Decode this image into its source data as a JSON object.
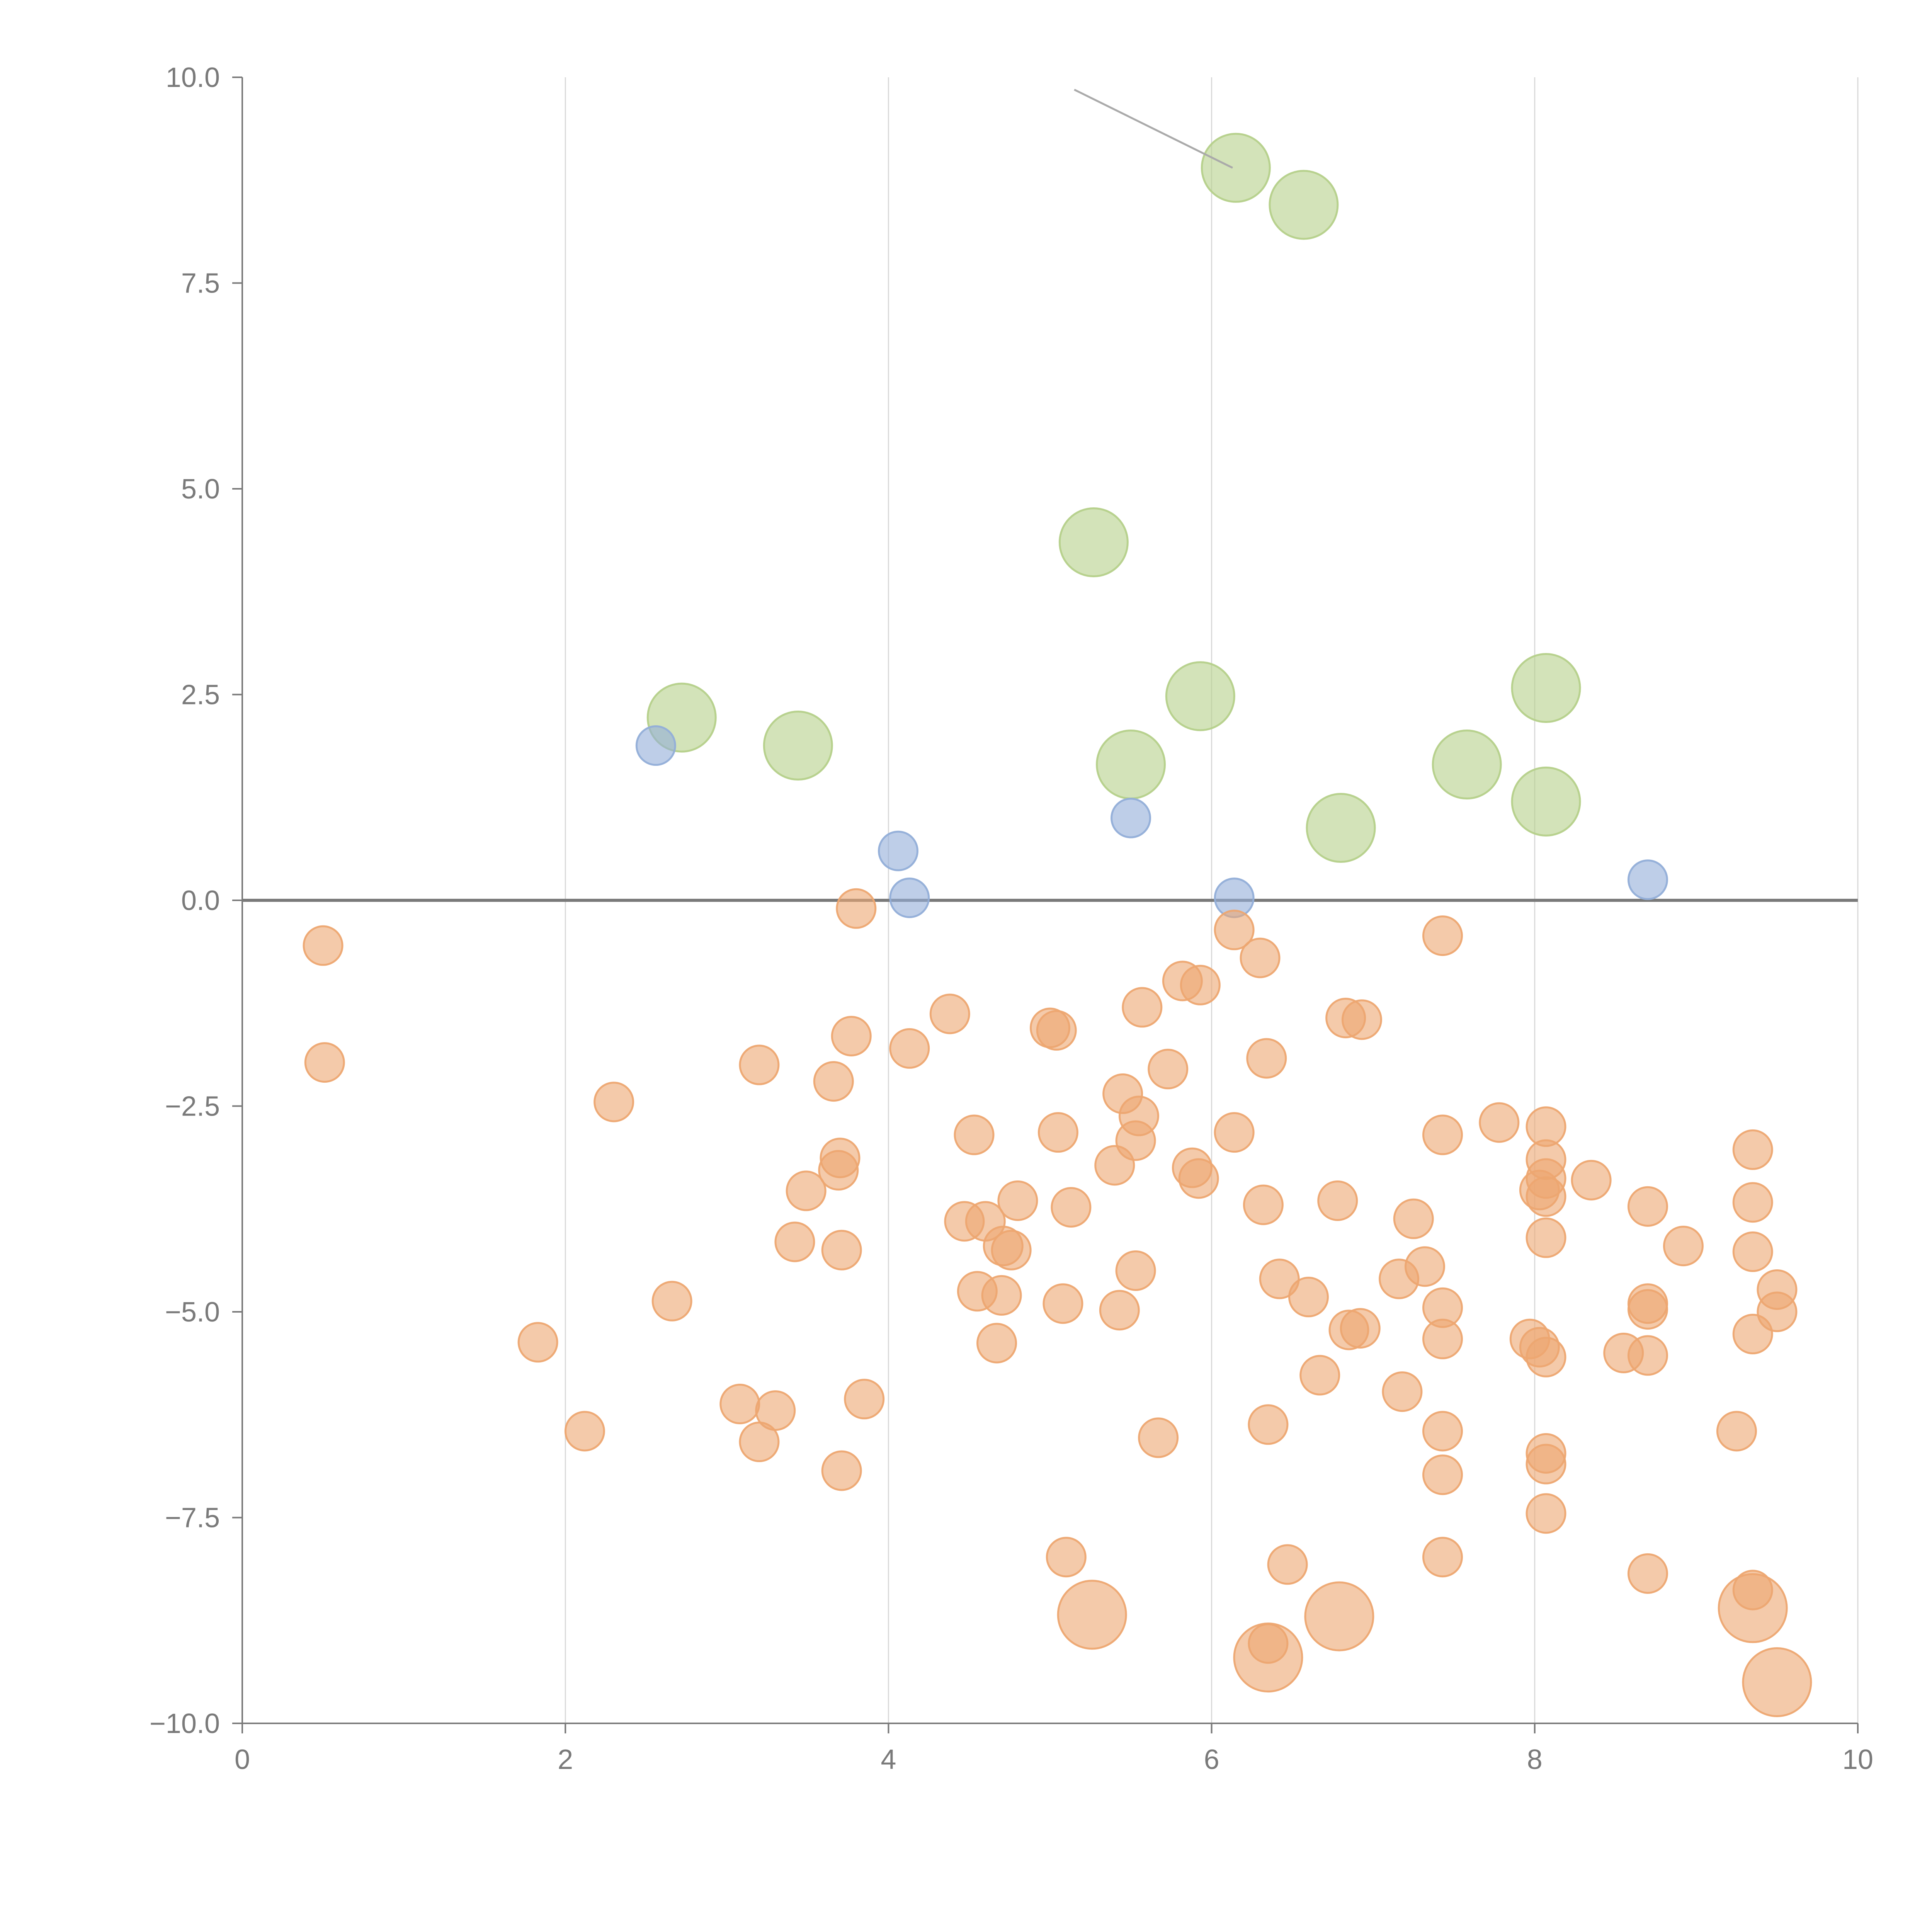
{
  "chart_data": {
    "type": "scatter",
    "title": "",
    "xlabel": "",
    "ylabel": "",
    "xlim": [
      0,
      10
    ],
    "ylim": [
      -10,
      10
    ],
    "grid": "vertical",
    "zero_line": true,
    "x_ticks": [
      0,
      2,
      4,
      6,
      8,
      10
    ],
    "x_tick_labels": [
      "0",
      "2",
      "4",
      "6",
      "8",
      "10"
    ],
    "y_ticks": [
      10,
      7.5,
      5,
      2.5,
      0,
      -2.5,
      -5,
      -7.5,
      -10
    ],
    "y_tick_labels": [
      "10.0",
      "7.5",
      "5.0",
      "2.5",
      "0.0",
      "−2.5",
      "−5.0",
      "−7.5",
      "−10.0"
    ],
    "colors": {
      "green": "#b5d08a",
      "blue": "#92aed8",
      "orange": "#eda771",
      "axis": "#7a7a7a",
      "grid": "#d9d9d9",
      "annotation_line": "#aaaaaa"
    },
    "series": [
      {
        "name": "green",
        "color": "#b5d08a",
        "size": 3,
        "points": [
          [
            6.15,
            8.9
          ],
          [
            6.57,
            8.45
          ],
          [
            5.27,
            4.35
          ],
          [
            2.72,
            2.22
          ],
          [
            3.44,
            1.88
          ],
          [
            5.93,
            2.48
          ],
          [
            8.07,
            2.58
          ],
          [
            5.5,
            1.65
          ],
          [
            7.58,
            1.65
          ],
          [
            8.07,
            1.2
          ],
          [
            6.8,
            0.88
          ]
        ]
      },
      {
        "name": "blue",
        "color": "#92aed8",
        "size": 1,
        "points": [
          [
            2.56,
            1.88
          ],
          [
            4.06,
            0.6
          ],
          [
            4.13,
            0.03
          ],
          [
            5.5,
            1.0
          ],
          [
            6.14,
            0.03
          ],
          [
            8.7,
            0.25
          ]
        ]
      },
      {
        "name": "orange",
        "color": "#eda771",
        "size": 1,
        "points": [
          [
            0.5,
            -0.55
          ],
          [
            0.51,
            -1.97
          ],
          [
            2.3,
            -2.45
          ],
          [
            3.8,
            -0.1
          ],
          [
            3.77,
            -1.65
          ],
          [
            4.13,
            -1.8
          ],
          [
            3.2,
            -2.0
          ],
          [
            3.66,
            -2.2
          ],
          [
            4.38,
            -1.38
          ],
          [
            5.0,
            -1.55
          ],
          [
            5.04,
            -1.58
          ],
          [
            5.57,
            -1.3
          ],
          [
            5.82,
            -0.98
          ],
          [
            5.93,
            -1.03
          ],
          [
            6.14,
            -0.36
          ],
          [
            6.3,
            -0.7
          ],
          [
            6.34,
            -1.92
          ],
          [
            5.73,
            -2.05
          ],
          [
            5.45,
            -2.35
          ],
          [
            5.55,
            -2.62
          ],
          [
            5.53,
            -2.92
          ],
          [
            5.4,
            -3.22
          ],
          [
            5.88,
            -3.25
          ],
          [
            5.92,
            -3.38
          ],
          [
            6.14,
            -2.82
          ],
          [
            5.05,
            -2.82
          ],
          [
            4.53,
            -2.85
          ],
          [
            3.7,
            -3.13
          ],
          [
            3.69,
            -3.28
          ],
          [
            3.49,
            -3.53
          ],
          [
            3.42,
            -4.15
          ],
          [
            3.71,
            -4.25
          ],
          [
            4.47,
            -3.9
          ],
          [
            4.6,
            -3.9
          ],
          [
            4.8,
            -3.65
          ],
          [
            5.13,
            -3.73
          ],
          [
            4.71,
            -4.2
          ],
          [
            4.76,
            -4.25
          ],
          [
            6.32,
            -3.7
          ],
          [
            6.78,
            -3.65
          ],
          [
            6.83,
            -1.43
          ],
          [
            6.93,
            -1.45
          ],
          [
            7.43,
            -0.43
          ],
          [
            7.43,
            -2.85
          ],
          [
            7.25,
            -3.87
          ],
          [
            7.78,
            -2.7
          ],
          [
            8.07,
            -2.75
          ],
          [
            8.07,
            -3.15
          ],
          [
            8.07,
            -3.38
          ],
          [
            8.03,
            -3.52
          ],
          [
            8.07,
            -3.6
          ],
          [
            8.35,
            -3.4
          ],
          [
            8.07,
            -4.1
          ],
          [
            8.7,
            -3.72
          ],
          [
            8.92,
            -4.2
          ],
          [
            9.35,
            -3.03
          ],
          [
            9.35,
            -3.67
          ],
          [
            9.35,
            -4.27
          ],
          [
            9.5,
            -4.73
          ],
          [
            9.5,
            -5.0
          ],
          [
            9.35,
            -5.27
          ],
          [
            9.25,
            -6.45
          ],
          [
            8.55,
            -5.5
          ],
          [
            8.7,
            -5.53
          ],
          [
            8.7,
            -4.9
          ],
          [
            8.7,
            -4.97
          ],
          [
            8.07,
            -5.55
          ],
          [
            8.03,
            -5.43
          ],
          [
            7.97,
            -5.33
          ],
          [
            7.43,
            -5.33
          ],
          [
            7.43,
            -4.95
          ],
          [
            7.32,
            -4.45
          ],
          [
            7.16,
            -4.6
          ],
          [
            6.92,
            -5.2
          ],
          [
            6.85,
            -5.22
          ],
          [
            6.6,
            -4.82
          ],
          [
            6.42,
            -4.6
          ],
          [
            6.67,
            -5.77
          ],
          [
            7.18,
            -5.97
          ],
          [
            7.43,
            -6.45
          ],
          [
            7.43,
            -6.98
          ],
          [
            6.35,
            -6.37
          ],
          [
            5.67,
            -6.53
          ],
          [
            5.08,
            -4.9
          ],
          [
            5.43,
            -4.98
          ],
          [
            5.53,
            -4.5
          ],
          [
            4.7,
            -4.8
          ],
          [
            4.55,
            -4.75
          ],
          [
            4.67,
            -5.38
          ],
          [
            2.66,
            -4.87
          ],
          [
            1.83,
            -5.37
          ],
          [
            2.12,
            -6.45
          ],
          [
            3.08,
            -6.12
          ],
          [
            3.3,
            -6.2
          ],
          [
            3.2,
            -6.58
          ],
          [
            3.85,
            -6.06
          ],
          [
            3.71,
            -6.93
          ],
          [
            5.1,
            -7.98
          ],
          [
            6.47,
            -8.07
          ],
          [
            7.43,
            -7.98
          ],
          [
            8.07,
            -7.45
          ],
          [
            8.07,
            -6.72
          ],
          [
            8.07,
            -6.85
          ],
          [
            8.7,
            -8.18
          ],
          [
            9.35,
            -8.38
          ],
          [
            6.35,
            -9.03
          ]
        ]
      },
      {
        "name": "orange-large",
        "color": "#eda771",
        "size": 3,
        "points": [
          [
            5.26,
            -8.68
          ],
          [
            6.79,
            -8.7
          ],
          [
            6.35,
            -9.2
          ],
          [
            9.35,
            -8.6
          ],
          [
            9.5,
            -9.5
          ]
        ]
      }
    ],
    "annotations": [
      {
        "x1": 5.15,
        "y1": 9.85,
        "x2": 6.13,
        "y2": 8.9
      }
    ]
  }
}
